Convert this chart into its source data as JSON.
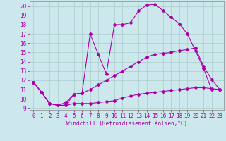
{
  "xlabel": "Windchill (Refroidissement éolien,°C)",
  "bg_color": "#cce8ec",
  "line_color": "#aa00aa",
  "grid_color": "#aacccc",
  "xlim": [
    -0.5,
    23.5
  ],
  "ylim": [
    8.8,
    20.5
  ],
  "xticks": [
    0,
    1,
    2,
    3,
    4,
    5,
    6,
    7,
    8,
    9,
    10,
    11,
    12,
    13,
    14,
    15,
    16,
    17,
    18,
    19,
    20,
    21,
    22,
    23
  ],
  "yticks": [
    9,
    10,
    11,
    12,
    13,
    14,
    15,
    16,
    17,
    18,
    19,
    20
  ],
  "line1_x": [
    0,
    1,
    2,
    3,
    4,
    5,
    6,
    7,
    8,
    9,
    10,
    11,
    12,
    13,
    14,
    15,
    16,
    17,
    18,
    19,
    20,
    21,
    22,
    23
  ],
  "line1_y": [
    11.8,
    10.7,
    9.5,
    9.3,
    9.3,
    10.5,
    10.6,
    17.0,
    14.8,
    12.7,
    18.0,
    18.0,
    18.2,
    19.5,
    20.1,
    20.2,
    19.5,
    18.8,
    18.1,
    17.0,
    15.2,
    13.3,
    11.0,
    11.0
  ],
  "line2_x": [
    0,
    1,
    2,
    3,
    4,
    5,
    6,
    7,
    8,
    9,
    10,
    11,
    12,
    13,
    14,
    15,
    16,
    17,
    18,
    19,
    20,
    21,
    22,
    23
  ],
  "line2_y": [
    11.8,
    10.7,
    9.5,
    9.3,
    9.3,
    9.5,
    9.5,
    9.5,
    9.6,
    9.7,
    9.8,
    10.1,
    10.3,
    10.5,
    10.6,
    10.7,
    10.8,
    10.9,
    11.0,
    11.1,
    11.2,
    11.2,
    11.1,
    11.0
  ],
  "line3_x": [
    0,
    1,
    2,
    3,
    4,
    5,
    6,
    7,
    8,
    9,
    10,
    11,
    12,
    13,
    14,
    15,
    16,
    17,
    18,
    19,
    20,
    21,
    22,
    23
  ],
  "line3_y": [
    11.8,
    10.7,
    9.5,
    9.3,
    9.6,
    10.5,
    10.6,
    11.0,
    11.5,
    12.0,
    12.5,
    13.0,
    13.5,
    14.0,
    14.5,
    14.8,
    14.9,
    15.0,
    15.2,
    15.3,
    15.5,
    13.5,
    12.1,
    11.0
  ],
  "tick_fontsize": 5.5,
  "xlabel_fontsize": 5.5,
  "marker_size": 2.0
}
